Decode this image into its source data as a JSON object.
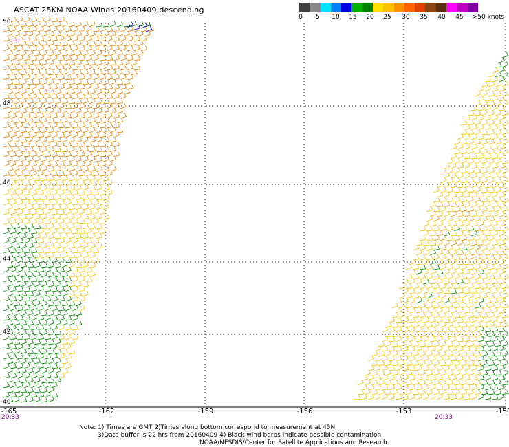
{
  "title": "ASCAT 25KM NOAA Winds 20160409 descending",
  "legend": {
    "swatches": [
      "#404040",
      "#888888",
      "#00e5ff",
      "#0080ff",
      "#0000e0",
      "#00b000",
      "#008000",
      "#ffe000",
      "#ffc000",
      "#ff9000",
      "#ff6000",
      "#e04000",
      "#8b4513",
      "#5a2d0c",
      "#ff00ff",
      "#c000c0",
      "#8000a0"
    ],
    "ticks": [
      "0",
      "5",
      "10",
      "15",
      "20",
      "25",
      "30",
      "35",
      "40",
      "45",
      ">50 knots"
    ]
  },
  "lat_labels": [
    "50",
    "48",
    "46",
    "44",
    "42",
    "40"
  ],
  "lon_labels": [
    "-165",
    "-162",
    "-159",
    "-156",
    "-153",
    "-150"
  ],
  "time_labels": [
    "20:33",
    "20:33"
  ],
  "notes": [
    "Note: 1) Times are GMT 2)Times along bottom correspond to measurement at 45N",
    "3)Data buffer is 22 hrs from 20160409 4) Black wind barbs indicate possible contamination",
    "NOAA/NESDIS/Center for Satellite Applications and Research"
  ],
  "map_colors": {
    "orange": "#e89018",
    "gold": "#f2c81a",
    "yellow": "#f6e020",
    "green": "#1a9a1a",
    "darkgreen": "#0a6a0a",
    "blue": "#1010c0",
    "grid": "#333333"
  }
}
